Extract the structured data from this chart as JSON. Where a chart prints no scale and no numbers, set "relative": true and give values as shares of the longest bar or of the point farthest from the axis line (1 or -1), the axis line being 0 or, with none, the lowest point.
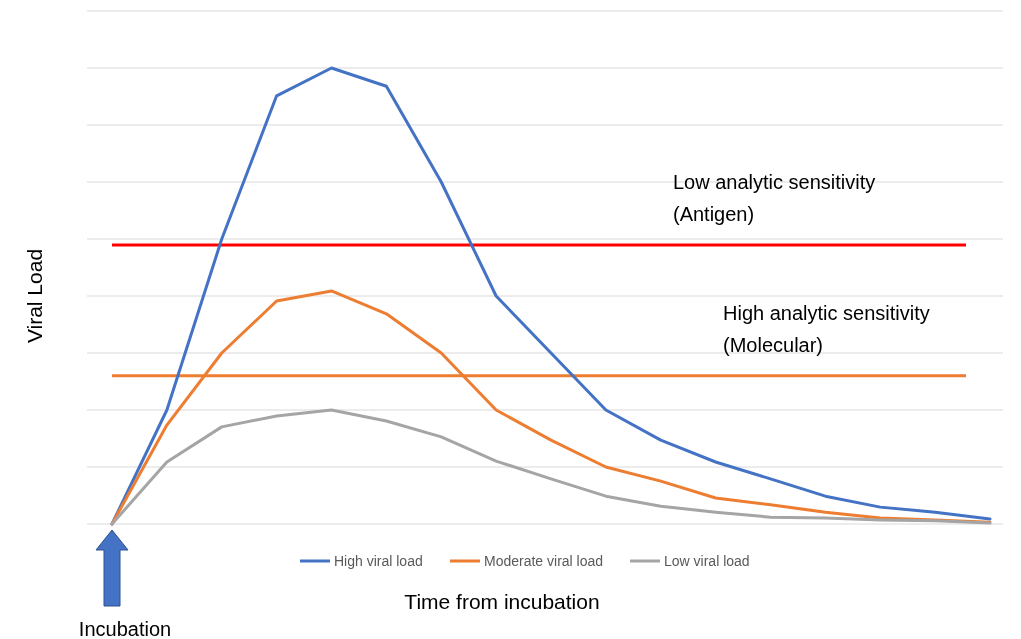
{
  "chart_data": {
    "type": "line",
    "relative": true,
    "grid": "y",
    "legend": "bottom",
    "marker": "none",
    "line_style": "solid",
    "xlabel": "Time from incubation",
    "ylabel": "Viral Load",
    "annotations": [
      "Incubation"
    ],
    "categories": [
      null,
      null,
      null,
      null,
      null,
      null,
      null,
      null,
      null,
      null,
      null,
      null,
      null,
      null,
      null,
      null,
      null
    ],
    "series": [
      {
        "name": "High viral load",
        "color": "#4472c4",
        "values": [
          0,
          0.25,
          0.625,
          0.939,
          1,
          0.96,
          0.75,
          0.5,
          0.375,
          0.25,
          0.184,
          0.136,
          0.099,
          0.061,
          0.037,
          0.026,
          0.011
        ]
      },
      {
        "name": "Moderate viral load",
        "color": "#ed7d31",
        "values": [
          0,
          0.217,
          0.375,
          0.489,
          0.511,
          0.461,
          0.375,
          0.25,
          0.184,
          0.125,
          0.094,
          0.057,
          0.042,
          0.026,
          0.013,
          0.009,
          0.004
        ]
      },
      {
        "name": "Low viral load",
        "color": "#a5a5a5",
        "values": [
          0,
          0.136,
          0.213,
          0.237,
          0.25,
          0.226,
          0.191,
          0.138,
          0.099,
          0.061,
          0.039,
          0.026,
          0.015,
          0.013,
          0.009,
          0.007,
          0.002
        ]
      }
    ],
    "ref_lines": [
      {
        "axis": "y",
        "value": 0.612,
        "label": "Low analytic sensitivity\n(Antigen)",
        "color": "#ff0000"
      },
      {
        "axis": "y",
        "value": 0.325,
        "label": "High analytic sensitivity\n(Molecular)",
        "color": "#ed7d31"
      }
    ]
  }
}
